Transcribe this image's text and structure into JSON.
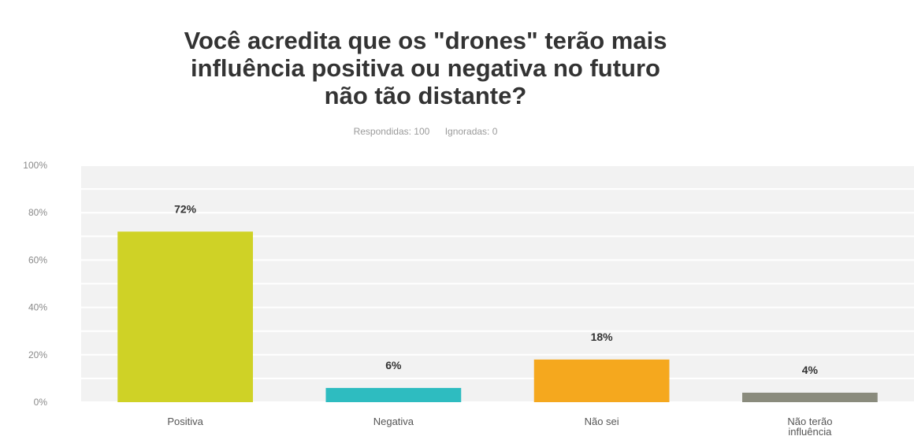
{
  "chart_data": {
    "type": "bar",
    "title_lines": [
      "Você acredita que os \"drones\" terão mais",
      "influência positiva ou negativa no futuro",
      "não tão distante?"
    ],
    "stats": {
      "answered": "Respondidas: 100",
      "skipped": "Ignoradas: 0"
    },
    "categories": [
      [
        "Positiva"
      ],
      [
        "Negativa"
      ],
      [
        "Não sei"
      ],
      [
        "Não terão",
        "influência"
      ]
    ],
    "values": [
      72,
      6,
      18,
      4
    ],
    "data_labels": [
      "72%",
      "6%",
      "18%",
      "4%"
    ],
    "colors": [
      "#cfd226",
      "#2ebcc0",
      "#f5a81e",
      "#8a8b7d"
    ],
    "ylim": [
      0,
      100
    ],
    "yticks": [
      0,
      20,
      40,
      60,
      80,
      100
    ],
    "ytick_labels": [
      "0%",
      "20%",
      "40%",
      "60%",
      "80%",
      "100%"
    ],
    "grid": true,
    "plot_background": "#f2f2f2",
    "grid_color": "#ffffff"
  }
}
